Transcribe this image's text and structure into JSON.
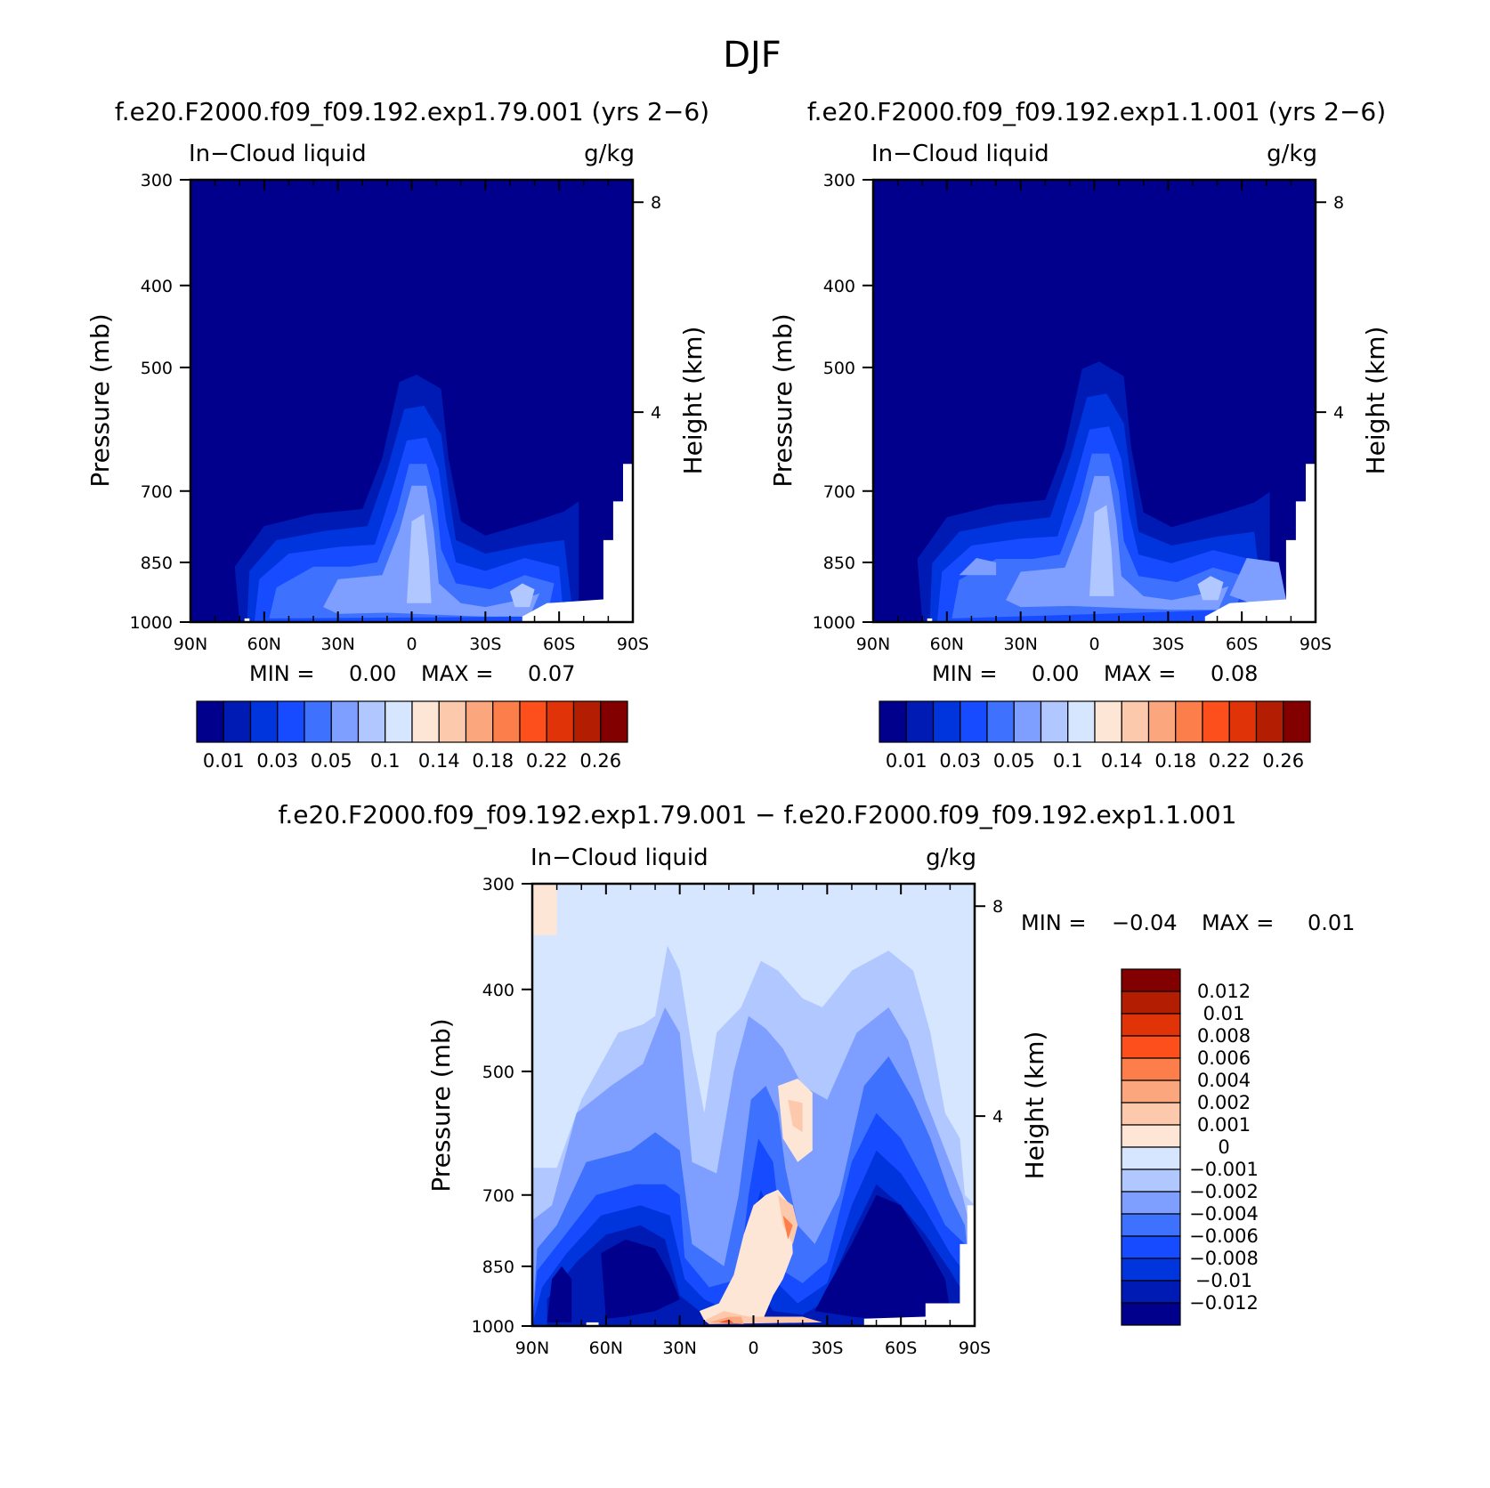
{
  "main_title": "DJF",
  "colors": {
    "positive": [
      "#fde6d6",
      "#fcc9ad",
      "#fba67d",
      "#fc7f4b",
      "#fc4f1c",
      "#e03408",
      "#b31e02",
      "#830000"
    ],
    "negative": [
      "#00008c",
      "#001bb3",
      "#0034dd",
      "#164bff",
      "#3f71ff",
      "#7e9fff",
      "#b1c7ff",
      "#d6e6ff"
    ]
  },
  "chart_data": [
    {
      "type": "contour",
      "title": "f.e20.F2000.f09_f09.192.exp1.79.001 (yrs 2−6)",
      "variable": "In−Cloud liquid",
      "units": "g/kg",
      "xlabel": "",
      "ylabel": "Pressure (mb)",
      "right_label": "Height (km)",
      "x_ticks": [
        "90N",
        "60N",
        "30N",
        "0",
        "30S",
        "60S",
        "90S"
      ],
      "y_ticks": [
        300,
        400,
        500,
        700,
        850,
        1000
      ],
      "height_ticks": [
        8,
        4
      ],
      "ylim": [
        1000,
        300
      ],
      "min_label": "MIN =",
      "min_value": "0.00",
      "max_label": "MAX =",
      "max_value": "0.07",
      "colorbar_labels": [
        "0.01",
        "0.03",
        "0.05",
        "0.1",
        "0.14",
        "0.18",
        "0.22",
        "0.26"
      ],
      "peaks": [
        {
          "lat": -5,
          "p": 800,
          "value": 0.07
        },
        {
          "lat": -45,
          "p": 880,
          "value": 0.05
        },
        {
          "lat": 40,
          "p": 860,
          "value": 0.04
        }
      ]
    },
    {
      "type": "contour",
      "title": "f.e20.F2000.f09_f09.192.exp1.1.001 (yrs 2−6)",
      "variable": "In−Cloud liquid",
      "units": "g/kg",
      "xlabel": "",
      "ylabel": "Pressure (mb)",
      "right_label": "Height (km)",
      "x_ticks": [
        "90N",
        "60N",
        "30N",
        "0",
        "30S",
        "60S",
        "90S"
      ],
      "y_ticks": [
        300,
        400,
        500,
        700,
        850,
        1000
      ],
      "height_ticks": [
        8,
        4
      ],
      "ylim": [
        1000,
        300
      ],
      "min_label": "MIN =",
      "min_value": "0.00",
      "max_label": "MAX =",
      "max_value": "0.08",
      "colorbar_labels": [
        "0.01",
        "0.03",
        "0.05",
        "0.1",
        "0.14",
        "0.18",
        "0.22",
        "0.26"
      ],
      "peaks": [
        {
          "lat": -5,
          "p": 800,
          "value": 0.08
        },
        {
          "lat": -55,
          "p": 880,
          "value": 0.06
        },
        {
          "lat": 40,
          "p": 860,
          "value": 0.05
        }
      ]
    },
    {
      "type": "contour",
      "title": "f.e20.F2000.f09_f09.192.exp1.79.001 − f.e20.F2000.f09_f09.192.exp1.1.001",
      "variable": "In−Cloud liquid",
      "units": "g/kg",
      "xlabel": "",
      "ylabel": "Pressure (mb)",
      "right_label": "Height (km)",
      "x_ticks": [
        "90N",
        "60N",
        "30N",
        "0",
        "30S",
        "60S",
        "90S"
      ],
      "y_ticks": [
        300,
        400,
        500,
        700,
        850,
        1000
      ],
      "height_ticks": [
        8,
        4
      ],
      "ylim": [
        1000,
        300
      ],
      "min_label": "MIN =",
      "min_value": "−0.04",
      "max_label": "MAX =",
      "max_value": "0.01",
      "colorbar_labels": [
        "0.012",
        "0.01",
        "0.008",
        "0.006",
        "0.004",
        "0.002",
        "0.001",
        "0",
        "−0.001",
        "−0.002",
        "−0.004",
        "−0.006",
        "−0.008",
        "−0.01",
        "−0.012"
      ],
      "peaks": [
        {
          "lat": 45,
          "p": 850,
          "value": -0.04
        },
        {
          "lat": -55,
          "p": 850,
          "value": -0.04
        },
        {
          "lat": 8,
          "p": 990,
          "value": 0.01
        },
        {
          "lat": -15,
          "p": 780,
          "value": 0.006
        }
      ]
    }
  ]
}
